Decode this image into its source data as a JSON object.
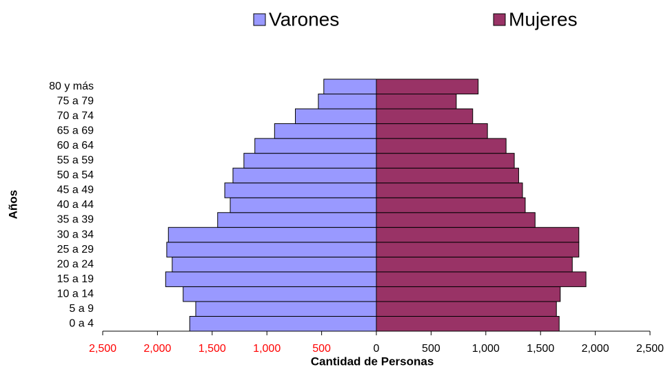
{
  "chart_data": {
    "type": "pyramid",
    "x_label": "Cantidad de Personas",
    "y_label": "Años",
    "categories": [
      "0 a 4",
      "5 a 9",
      "10 a 14",
      "15 a 19",
      "20 a 24",
      "25 a 29",
      "30 a 34",
      "35 a 39",
      "40 a 44",
      "45 a 49",
      "50 a 54",
      "55 a 59",
      "60 a 64",
      "65 a 69",
      "70 a 74",
      "75 a 79",
      "80 y más"
    ],
    "series": [
      {
        "name": "Varones",
        "color": "#9999ff",
        "side": "left",
        "values": [
          1705,
          1650,
          1765,
          1925,
          1865,
          1915,
          1900,
          1450,
          1335,
          1385,
          1310,
          1210,
          1110,
          930,
          740,
          530,
          480
        ]
      },
      {
        "name": "Mujeres",
        "color": "#993366",
        "side": "right",
        "values": [
          1670,
          1645,
          1680,
          1915,
          1790,
          1850,
          1850,
          1450,
          1360,
          1335,
          1300,
          1260,
          1185,
          1015,
          880,
          730,
          930
        ]
      }
    ],
    "xlim": [
      -2500,
      2500
    ],
    "xticks": [
      {
        "value": -2500,
        "label": "2,500"
      },
      {
        "value": -2000,
        "label": "2,000"
      },
      {
        "value": -1500,
        "label": "1,500"
      },
      {
        "value": -1000,
        "label": "1,000"
      },
      {
        "value": -500,
        "label": "500"
      },
      0,
      500,
      {
        "value": 1000,
        "label": "1,000"
      },
      {
        "value": 1500,
        "label": "1,500"
      },
      {
        "value": 2000,
        "label": "2,000"
      },
      {
        "value": 2500,
        "label": "2,500"
      }
    ],
    "negative_tick_color": "#ff0000",
    "legend": "top"
  }
}
